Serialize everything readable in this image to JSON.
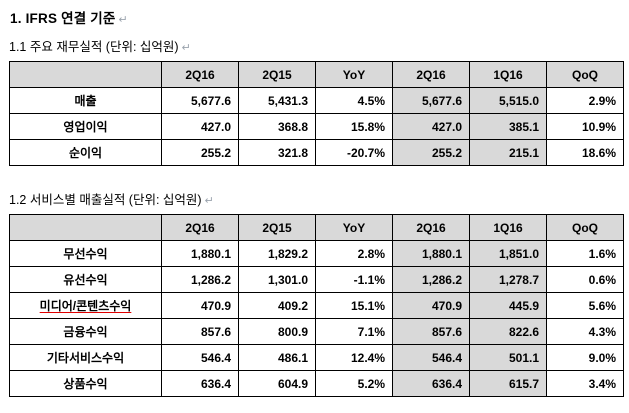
{
  "colors": {
    "header_bg": "#d9d9d9",
    "shaded_col_bg": "#d9d9d9",
    "table_border": "#000000",
    "spellcheck_underline": "#e00000",
    "paragraph_mark": "#9aa3ad"
  },
  "doc": {
    "title": "1. IFRS 연결 기준",
    "paragraph_mark_glyph": "↵",
    "section1": {
      "subtitle": "1.1 주요 재무실적 (단위: 십억원)",
      "table": {
        "headers": [
          "",
          "2Q16",
          "2Q15",
          "YoY",
          "2Q16",
          "1Q16",
          "QoQ"
        ],
        "rows": [
          {
            "label": "매출",
            "values": [
              "5,677.6",
              "5,431.3",
              "4.5%",
              "5,677.6",
              "5,515.0",
              "2.9%"
            ]
          },
          {
            "label": "영업이익",
            "values": [
              "427.0",
              "368.8",
              "15.8%",
              "427.0",
              "385.1",
              "10.9%"
            ]
          },
          {
            "label": "순이익",
            "values": [
              "255.2",
              "321.8",
              "-20.7%",
              "255.2",
              "215.1",
              "18.6%"
            ]
          }
        ]
      }
    },
    "section2": {
      "subtitle": "1.2 서비스별 매출실적 (단위: 십억원)",
      "table": {
        "headers": [
          "",
          "2Q16",
          "2Q15",
          "YoY",
          "2Q16",
          "1Q16",
          "QoQ"
        ],
        "rows": [
          {
            "label": "무선수익",
            "values": [
              "1,880.1",
              "1,829.2",
              "2.8%",
              "1,880.1",
              "1,851.0",
              "1.6%"
            ]
          },
          {
            "label": "유선수익",
            "values": [
              "1,286.2",
              "1,301.0",
              "-1.1%",
              "1,286.2",
              "1,278.7",
              "0.6%"
            ]
          },
          {
            "label": "미디어/콘텐츠수익",
            "spellcheck": true,
            "values": [
              "470.9",
              "409.2",
              "15.1%",
              "470.9",
              "445.9",
              "5.6%"
            ]
          },
          {
            "label": "금융수익",
            "values": [
              "857.6",
              "800.9",
              "7.1%",
              "857.6",
              "822.6",
              "4.3%"
            ]
          },
          {
            "label": "기타서비스수익",
            "values": [
              "546.4",
              "486.1",
              "12.4%",
              "546.4",
              "501.1",
              "9.0%"
            ]
          },
          {
            "label": "상품수익",
            "values": [
              "636.4",
              "604.9",
              "5.2%",
              "636.4",
              "615.7",
              "3.4%"
            ]
          }
        ]
      }
    }
  }
}
